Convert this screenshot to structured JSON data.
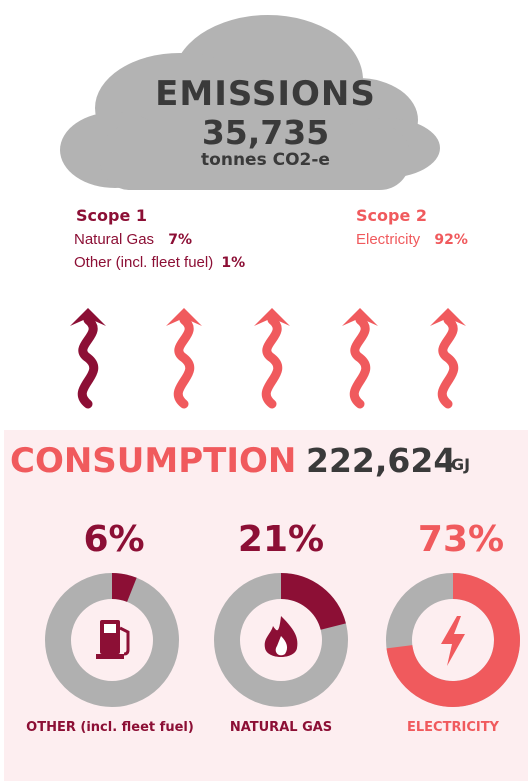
{
  "emissions": {
    "title": "EMISSIONS",
    "value": "35,735",
    "unit": "tonnes CO2-e"
  },
  "scope1": {
    "heading": "Scope 1",
    "rows": [
      {
        "label": "Natural Gas",
        "percent": "7%"
      },
      {
        "label": "Other (incl. fleet fuel)",
        "percent": "1%"
      }
    ]
  },
  "scope2": {
    "heading": "Scope 2",
    "rows": [
      {
        "label": "Electricity",
        "percent": "92%"
      }
    ]
  },
  "consumption": {
    "title": "CONSUMPTION",
    "total": "222,624",
    "unit": "GJ"
  },
  "chart_data": {
    "type": "pie",
    "categories": [
      "OTHER (incl. fleet fuel)",
      "NATURAL GAS",
      "ELECTRICITY"
    ],
    "values": [
      6,
      21,
      73
    ],
    "percent_labels": [
      "6%",
      "21%",
      "73%"
    ],
    "colors": [
      "#8c0f35",
      "#8c0f35",
      "#f05a5d"
    ],
    "track_color": "#b0b0b0",
    "icons": [
      "fuel-pump-icon",
      "flame-icon",
      "lightning-icon"
    ]
  },
  "colors": {
    "dark_accent": "#8c0f35",
    "light_accent": "#f05a5d",
    "cloud": "#b3b3b3",
    "panel_bg": "#fdeef0",
    "text_dark": "#3a3a3a"
  }
}
